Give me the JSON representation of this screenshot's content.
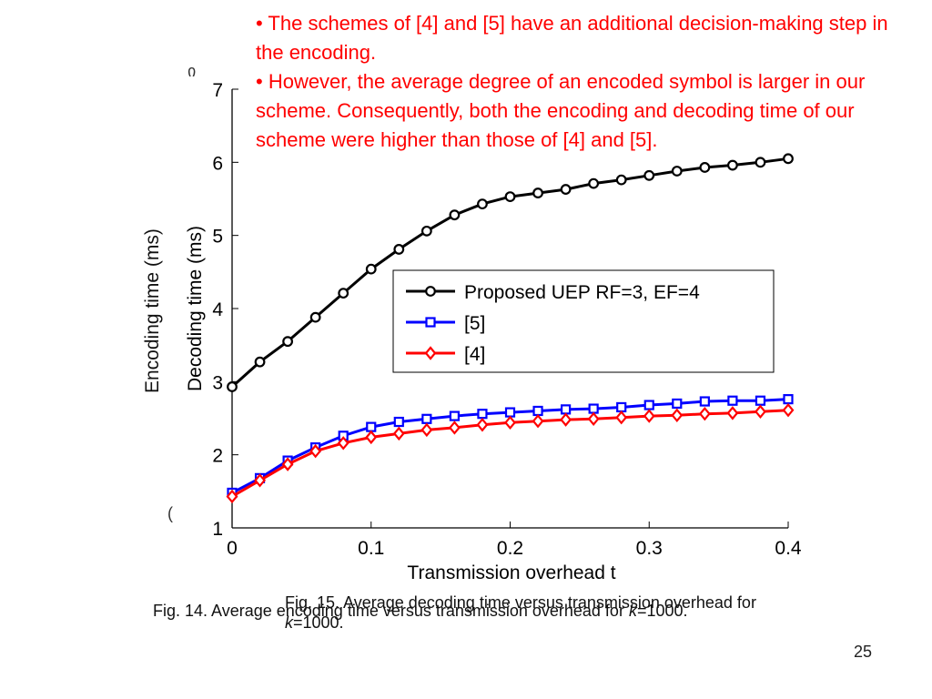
{
  "bullets": [
    "• The schemes of [4] and [5] have an additional decision-making step in the encoding.",
    "• However, the average degree of an encoded symbol is larger in our scheme. Consequently, both the encoding and decoding time of our scheme were higher than those of [4] and [5]."
  ],
  "captions": {
    "fig14_prefix": "Fig. 14. Average encoding time versus transmission overhead for ",
    "fig14_k": "k",
    "fig14_suffix": "=1000.",
    "fig15_prefix": "Fig. 15. Average decoding time versus transmission overhead for ",
    "fig15_k": "k",
    "fig15_suffix": "=1000."
  },
  "page_number": "25",
  "colors": {
    "bullet_text": "#ff0000",
    "series_proposed": "#000000",
    "series_ref5": "#0000ff",
    "series_ref4": "#ff0000"
  },
  "chart_data": {
    "type": "line",
    "xlabel": "Transmission overhead t",
    "ylabel": "Decoding time (ms)",
    "ylabel_behind": "Encoding time (ms)",
    "xlim": [
      0,
      0.4
    ],
    "ylim": [
      1,
      7
    ],
    "xticks": [
      "0",
      "0.1",
      "0.2",
      "0.3",
      "0.4"
    ],
    "yticks": [
      "1",
      "2",
      "3",
      "4",
      "5",
      "6",
      "7"
    ],
    "x": [
      0,
      0.02,
      0.04,
      0.06,
      0.08,
      0.1,
      0.12,
      0.14,
      0.16,
      0.18,
      0.2,
      0.22,
      0.24,
      0.26,
      0.28,
      0.3,
      0.32,
      0.34,
      0.36,
      0.38,
      0.4
    ],
    "legend_position": "upper-right-center",
    "series": [
      {
        "name": "Proposed UEP RF=3, EF=4",
        "marker": "circle",
        "color": "#000000",
        "values": [
          2.93,
          3.27,
          3.55,
          3.88,
          4.21,
          4.54,
          4.81,
          5.06,
          5.28,
          5.43,
          5.53,
          5.58,
          5.63,
          5.71,
          5.76,
          5.82,
          5.88,
          5.93,
          5.96,
          6.0,
          6.05
        ]
      },
      {
        "name": "[5]",
        "marker": "square",
        "color": "#0000ff",
        "values": [
          1.48,
          1.68,
          1.92,
          2.1,
          2.26,
          2.38,
          2.45,
          2.49,
          2.53,
          2.56,
          2.58,
          2.6,
          2.62,
          2.63,
          2.65,
          2.68,
          2.7,
          2.73,
          2.74,
          2.74,
          2.76
        ]
      },
      {
        "name": "[4]",
        "marker": "diamond",
        "color": "#ff0000",
        "values": [
          1.43,
          1.65,
          1.87,
          2.05,
          2.16,
          2.24,
          2.29,
          2.34,
          2.37,
          2.41,
          2.44,
          2.46,
          2.48,
          2.49,
          2.51,
          2.53,
          2.54,
          2.56,
          2.57,
          2.59,
          2.61
        ]
      }
    ]
  }
}
